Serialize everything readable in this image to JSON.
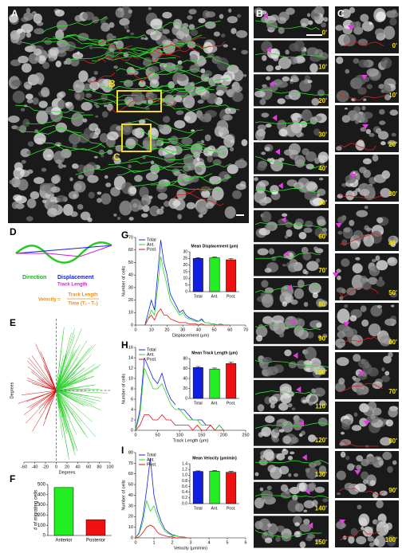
{
  "panel_labels": [
    "A",
    "B",
    "C",
    "D",
    "E",
    "F",
    "G",
    "H",
    "I"
  ],
  "image_a": {
    "box_labels": [
      "B",
      "C"
    ]
  },
  "timelapse_b": [
    "0'",
    "10'",
    "20'",
    "30'",
    "40'",
    "50'",
    "60'",
    "70'",
    "80'",
    "90'",
    "100'",
    "110'",
    "120'",
    "130'",
    "140'",
    "150'"
  ],
  "timelapse_c": [
    "0'",
    "10'",
    "20'",
    "30'",
    "40'",
    "50'",
    "60'",
    "70'",
    "80'",
    "90'",
    "100'"
  ],
  "diagram_d": {
    "direction": "Direction",
    "displacement": "Displacement",
    "track_length": "Track Length",
    "velocity": "Velocity =",
    "velocity_numerator": "Track Length",
    "velocity_denominator": "Time (T₁ - T₀)"
  },
  "chart_data": [
    {
      "type": "rays",
      "xlabel": "Degrees",
      "ylabel": "Degrees",
      "xlim": [
        -60,
        100
      ],
      "xticks": [
        -60,
        -40,
        -20,
        0,
        20,
        40,
        60,
        80,
        100
      ]
    },
    {
      "type": "bar",
      "ylabel": "# of migrating cells",
      "categories": [
        "Anterior",
        "Posterior"
      ],
      "values": [
        470,
        155
      ],
      "colors": [
        "#22ee22",
        "#ee1111"
      ],
      "ylim": [
        0,
        500
      ],
      "yticks": [
        0,
        100,
        200,
        300,
        400,
        500
      ]
    },
    {
      "type": "line",
      "xlabel": "Displacement (μm)",
      "ylabel": "Number of cells",
      "x": [
        6,
        8,
        10,
        12,
        14,
        16,
        18,
        20,
        22,
        24,
        26,
        28,
        30,
        32,
        34,
        36,
        38,
        40,
        42,
        44,
        46,
        48,
        50,
        52,
        54,
        56,
        58,
        60
      ],
      "series": [
        {
          "name": "Total",
          "color": "#1020e0",
          "values": [
            0,
            10,
            20,
            12,
            40,
            68,
            50,
            40,
            25,
            20,
            15,
            10,
            12,
            8,
            6,
            5,
            4,
            3,
            5,
            2,
            2,
            1,
            1,
            0,
            1,
            0,
            0,
            0
          ]
        },
        {
          "name": "Ant.",
          "color": "#30d030",
          "values": [
            0,
            5,
            12,
            8,
            30,
            55,
            42,
            32,
            20,
            16,
            12,
            8,
            10,
            6,
            5,
            4,
            3,
            3,
            4,
            2,
            2,
            1,
            1,
            0,
            1,
            0,
            0,
            0
          ]
        },
        {
          "name": "Post.",
          "color": "#e01010",
          "values": [
            0,
            5,
            8,
            4,
            10,
            13,
            8,
            8,
            5,
            4,
            3,
            2,
            2,
            2,
            1,
            1,
            1,
            0,
            1,
            0,
            0,
            0,
            0,
            0,
            0,
            0,
            0,
            0
          ]
        }
      ],
      "xlim": [
        0,
        70
      ],
      "xticks": [
        0,
        10,
        20,
        30,
        40,
        50,
        60,
        70
      ],
      "ylim": [
        0,
        70
      ],
      "yticks": [
        0,
        10,
        20,
        30,
        40,
        50,
        60,
        70
      ]
    },
    {
      "type": "bar",
      "title": "Mean Displacement (μm)",
      "categories": [
        "Total",
        "Ant.",
        "Post."
      ],
      "values": [
        25,
        25.5,
        24
      ],
      "errors": [
        0.6,
        0.5,
        0.9
      ],
      "colors": [
        "#1020e0",
        "#22ee22",
        "#ee1111"
      ],
      "ylim": [
        0,
        30
      ],
      "yticks": [
        0,
        5,
        10,
        15,
        20,
        25,
        30
      ]
    },
    {
      "type": "line",
      "xlabel": "Track Length (μm)",
      "ylabel": "Number of cells",
      "x": [
        0,
        10,
        20,
        30,
        40,
        50,
        60,
        70,
        80,
        90,
        100,
        110,
        120,
        130,
        140,
        150,
        160,
        170,
        180,
        190,
        200
      ],
      "series": [
        {
          "name": "Total",
          "color": "#1020e0",
          "values": [
            0,
            4,
            14,
            12,
            10,
            9,
            11,
            8,
            6,
            5,
            4,
            4,
            3,
            2,
            2,
            2,
            1,
            1,
            0,
            1,
            0
          ]
        },
        {
          "name": "Ant.",
          "color": "#30d030",
          "values": [
            0,
            3,
            12,
            10,
            8,
            8,
            9,
            7,
            5,
            4,
            4,
            3,
            2,
            2,
            2,
            1,
            1,
            1,
            0,
            1,
            0
          ]
        },
        {
          "name": "Post.",
          "color": "#e01010",
          "values": [
            0,
            1,
            3,
            3,
            2,
            2,
            3,
            2,
            2,
            1,
            1,
            1,
            1,
            0,
            1,
            0,
            0,
            1,
            0,
            0,
            0
          ]
        }
      ],
      "xlim": [
        0,
        250
      ],
      "xticks": [
        0,
        50,
        100,
        150,
        200,
        250
      ],
      "ylim": [
        0,
        16
      ],
      "yticks": [
        0,
        2,
        4,
        6,
        8,
        10,
        12,
        14,
        16
      ]
    },
    {
      "type": "bar",
      "title": "Mean Track Length (μm)",
      "categories": [
        "Total",
        "Ant.",
        "Post."
      ],
      "values": [
        62,
        59,
        70
      ],
      "errors": [
        2,
        2,
        3
      ],
      "colors": [
        "#1020e0",
        "#22ee22",
        "#ee1111"
      ],
      "ylim": [
        0,
        80
      ],
      "yticks": [
        0,
        20,
        40,
        60,
        80
      ]
    },
    {
      "type": "line",
      "xlabel": "Velocity (μm/min)",
      "ylabel": "Number of cells",
      "x": [
        0,
        0.2,
        0.4,
        0.6,
        0.8,
        1,
        1.2,
        1.4,
        1.6,
        1.8,
        2,
        2.2,
        2.4,
        2.6,
        2.8,
        3
      ],
      "series": [
        {
          "name": "Total",
          "color": "#1020e0",
          "values": [
            0,
            5,
            20,
            45,
            75,
            40,
            25,
            15,
            8,
            5,
            3,
            2,
            1,
            1,
            0,
            0
          ]
        },
        {
          "name": "Ant.",
          "color": "#30d030",
          "values": [
            0,
            4,
            15,
            35,
            25,
            30,
            20,
            12,
            6,
            4,
            2,
            2,
            1,
            1,
            0,
            0
          ]
        },
        {
          "name": "Post.",
          "color": "#e01010",
          "values": [
            0,
            1,
            5,
            10,
            12,
            10,
            5,
            3,
            2,
            1,
            1,
            0,
            0,
            0,
            0,
            0
          ]
        }
      ],
      "xlim": [
        0,
        6
      ],
      "xticks": [
        0,
        1,
        2,
        3,
        4,
        5,
        6
      ],
      "ylim": [
        0,
        80
      ],
      "yticks": [
        0,
        10,
        20,
        30,
        40,
        50,
        60,
        70,
        80
      ]
    },
    {
      "type": "bar",
      "title": "Mean Velocity (μm/min)",
      "categories": [
        "Total",
        "Ant.",
        "Post."
      ],
      "values": [
        1.13,
        1.14,
        1.1
      ],
      "errors": [
        0.02,
        0.02,
        0.03
      ],
      "colors": [
        "#1020e0",
        "#22ee22",
        "#ee1111"
      ],
      "ylim": [
        0,
        1.4
      ],
      "yticks": [
        {
          "value": 0,
          "label": "0.0"
        },
        0.2,
        0.4,
        0.6,
        0.8,
        {
          "value": 1,
          "label": "1.0"
        },
        1.2,
        1.4
      ]
    }
  ]
}
